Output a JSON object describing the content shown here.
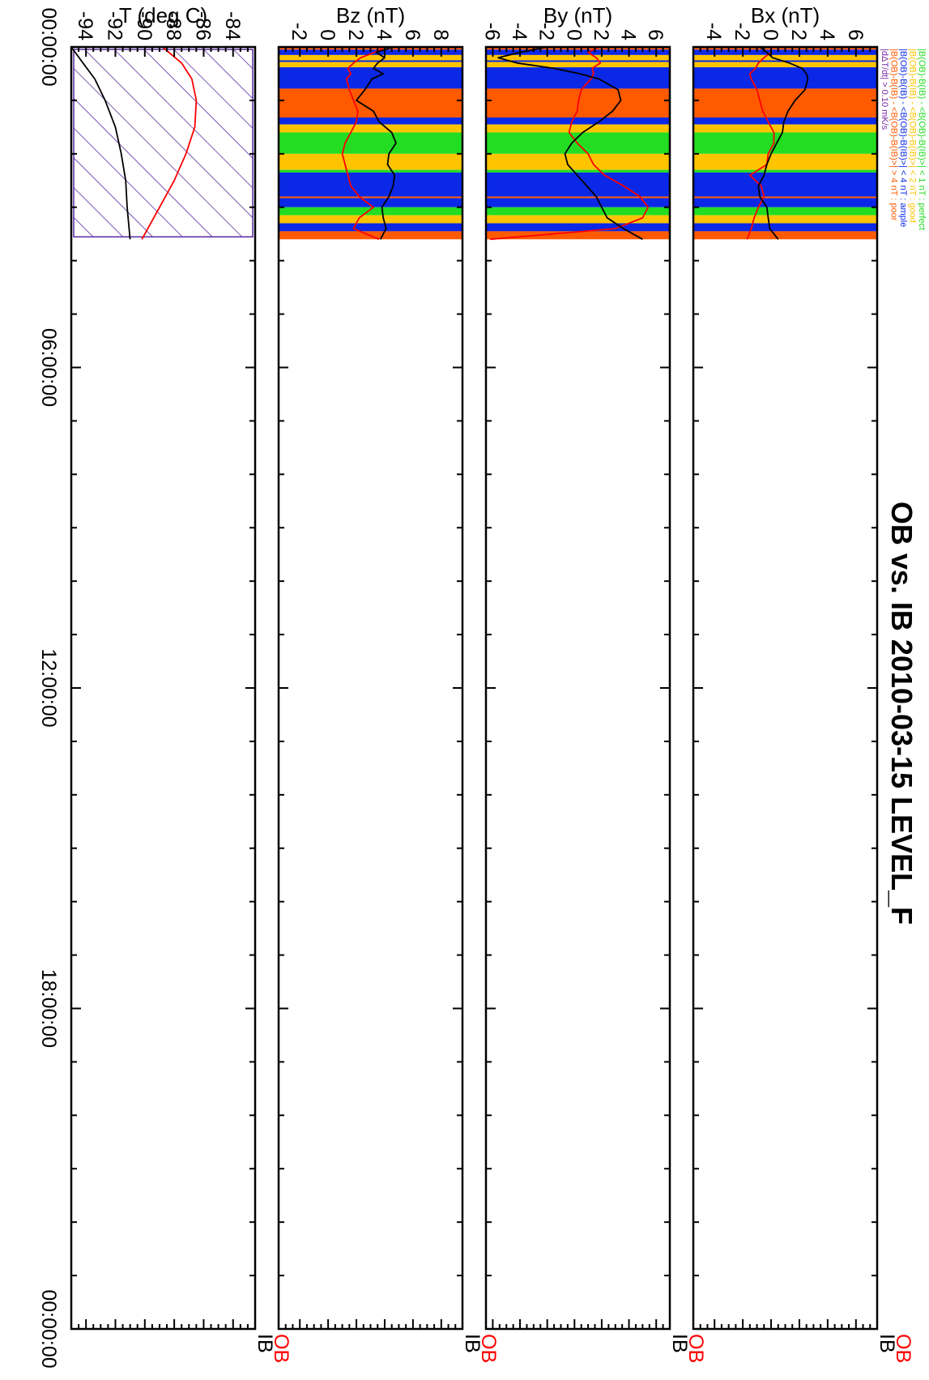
{
  "title": "OB vs. IB     2010-03-15 LEVEL_F",
  "legend": {
    "entries": [
      {
        "text": "|B(OB)-B(IB) - <B(OB)-B(IB)>| < 1 nT  : perfect",
        "color": "#22dd22"
      },
      {
        "text": "|B(OB)-B(IB) - <B(OB)-B(IB)>| < 2 nT  : good",
        "color": "#ffc400"
      },
      {
        "text": "|B(OB)-B(IB) - <B(OB)-B(IB)>| < 4 nT  : ample",
        "color": "#0a28e6"
      },
      {
        "text": "|B(OB)-B(IB) - <B(OB)-B(IB)>| > 4 nT  : poor",
        "color": "#ff5a00"
      },
      {
        "text": "|dΔT/dt|                              > 0.10 mK/s",
        "color": "#7a2aa8"
      }
    ]
  },
  "series_labels": {
    "ob": "OB",
    "ib": "IB"
  },
  "colors": {
    "ob": "#ff0000",
    "ib": "#000000",
    "perfect": "#22dd22",
    "good": "#ffc400",
    "ample": "#0a28e6",
    "poor": "#ff5a00",
    "hatch": "#5a2aa0"
  },
  "time_ticks": [
    "00:00:00",
    "06:00:00",
    "12:00:00",
    "18:00:00",
    "00:00:00"
  ],
  "chart_data": [
    {
      "type": "line",
      "ylabel": "Bx (nT)",
      "ylim": [
        -5.5,
        7.5
      ],
      "yticks": [
        6,
        4,
        2,
        0,
        -2,
        -4
      ],
      "ytick_labels": [
        "6",
        "4",
        "2",
        "0",
        "-2",
        "-4"
      ],
      "xlim_hours": [
        0,
        24
      ],
      "data_end_hours": 3.6,
      "quality_bands": [
        {
          "start": 0.0,
          "end": 0.05,
          "q": "poor"
        },
        {
          "start": 0.05,
          "end": 0.15,
          "q": "ample"
        },
        {
          "start": 0.15,
          "end": 0.25,
          "q": "good"
        },
        {
          "start": 0.25,
          "end": 0.28,
          "q": "ample"
        },
        {
          "start": 0.28,
          "end": 0.38,
          "q": "good"
        },
        {
          "start": 0.38,
          "end": 0.78,
          "q": "ample"
        },
        {
          "start": 0.78,
          "end": 1.32,
          "q": "poor"
        },
        {
          "start": 1.32,
          "end": 1.45,
          "q": "ample"
        },
        {
          "start": 1.45,
          "end": 1.6,
          "q": "good"
        },
        {
          "start": 1.6,
          "end": 2.0,
          "q": "perfect"
        },
        {
          "start": 2.0,
          "end": 2.3,
          "q": "good"
        },
        {
          "start": 2.3,
          "end": 2.35,
          "q": "perfect"
        },
        {
          "start": 2.35,
          "end": 2.8,
          "q": "ample"
        },
        {
          "start": 2.8,
          "end": 2.83,
          "q": "poor"
        },
        {
          "start": 2.83,
          "end": 3.0,
          "q": "ample"
        },
        {
          "start": 3.0,
          "end": 3.15,
          "q": "perfect"
        },
        {
          "start": 3.15,
          "end": 3.3,
          "q": "good"
        },
        {
          "start": 3.3,
          "end": 3.45,
          "q": "ample"
        },
        {
          "start": 3.45,
          "end": 3.6,
          "q": "poor"
        }
      ],
      "series": [
        {
          "name": "OB",
          "x": [
            0.0,
            0.1,
            0.2,
            0.3,
            0.4,
            0.5,
            0.6,
            0.8,
            1.0,
            1.2,
            1.4,
            1.6,
            1.8,
            2.0,
            2.2,
            2.4,
            2.6,
            2.8,
            3.0,
            3.2,
            3.4,
            3.6
          ],
          "y": [
            0.0,
            0.0,
            -0.5,
            -0.9,
            -1.1,
            -1.5,
            -1.4,
            -1.0,
            -0.8,
            -0.6,
            -0.2,
            0.2,
            0.2,
            -0.2,
            -0.3,
            -1.5,
            -0.7,
            -0.5,
            -0.9,
            -1.2,
            -1.4,
            -1.7
          ]
        },
        {
          "name": "IB",
          "x": [
            0.0,
            0.1,
            0.2,
            0.3,
            0.4,
            0.5,
            0.6,
            0.8,
            1.0,
            1.2,
            1.4,
            1.6,
            1.8,
            2.0,
            2.2,
            2.4,
            2.6,
            2.8,
            3.0,
            3.2,
            3.4,
            3.6
          ],
          "y": [
            -0.8,
            -0.3,
            0.1,
            1.3,
            2.2,
            2.5,
            2.6,
            2.4,
            1.7,
            1.2,
            0.9,
            0.8,
            0.4,
            0.0,
            -0.3,
            -0.5,
            -0.9,
            -0.8,
            -0.3,
            -0.2,
            -0.1,
            0.5
          ]
        }
      ]
    },
    {
      "type": "line",
      "ylabel": "By (nT)",
      "ylim": [
        -6.5,
        7.0
      ],
      "yticks": [
        6,
        4,
        2,
        0,
        -2,
        -4,
        -6
      ],
      "ytick_labels": [
        "6",
        "4",
        "2",
        "0",
        "-2",
        "-4",
        "-6"
      ],
      "xlim_hours": [
        0,
        24
      ],
      "data_end_hours": 3.6,
      "quality_bands": [
        {
          "start": 0.0,
          "end": 0.05,
          "q": "poor"
        },
        {
          "start": 0.05,
          "end": 0.15,
          "q": "ample"
        },
        {
          "start": 0.15,
          "end": 0.25,
          "q": "good"
        },
        {
          "start": 0.25,
          "end": 0.28,
          "q": "ample"
        },
        {
          "start": 0.28,
          "end": 0.38,
          "q": "good"
        },
        {
          "start": 0.38,
          "end": 0.78,
          "q": "ample"
        },
        {
          "start": 0.78,
          "end": 1.32,
          "q": "poor"
        },
        {
          "start": 1.32,
          "end": 1.45,
          "q": "ample"
        },
        {
          "start": 1.45,
          "end": 1.6,
          "q": "good"
        },
        {
          "start": 1.6,
          "end": 2.0,
          "q": "perfect"
        },
        {
          "start": 2.0,
          "end": 2.3,
          "q": "good"
        },
        {
          "start": 2.3,
          "end": 2.35,
          "q": "perfect"
        },
        {
          "start": 2.35,
          "end": 2.8,
          "q": "ample"
        },
        {
          "start": 2.8,
          "end": 2.83,
          "q": "poor"
        },
        {
          "start": 2.83,
          "end": 3.0,
          "q": "ample"
        },
        {
          "start": 3.0,
          "end": 3.15,
          "q": "perfect"
        },
        {
          "start": 3.15,
          "end": 3.3,
          "q": "good"
        },
        {
          "start": 3.3,
          "end": 3.45,
          "q": "ample"
        },
        {
          "start": 3.45,
          "end": 3.6,
          "q": "poor"
        }
      ],
      "series": [
        {
          "name": "OB",
          "x": [
            0.0,
            0.1,
            0.2,
            0.3,
            0.4,
            0.5,
            0.6,
            0.8,
            1.0,
            1.2,
            1.4,
            1.6,
            1.8,
            2.0,
            2.2,
            2.4,
            2.6,
            2.8,
            3.0,
            3.2,
            3.4,
            3.6
          ],
          "y": [
            1.8,
            1.0,
            1.6,
            1.9,
            1.3,
            1.4,
            1.2,
            0.5,
            0.3,
            0.2,
            -0.2,
            -0.4,
            0.2,
            1.0,
            1.4,
            2.2,
            3.6,
            4.8,
            5.4,
            5.0,
            3.0,
            -6.2
          ]
        },
        {
          "name": "IB",
          "x": [
            0.0,
            0.1,
            0.2,
            0.3,
            0.4,
            0.5,
            0.6,
            0.8,
            1.0,
            1.2,
            1.4,
            1.6,
            1.8,
            2.0,
            2.2,
            2.4,
            2.6,
            2.8,
            3.0,
            3.2,
            3.4,
            3.6
          ],
          "y": [
            -2.0,
            -4.0,
            -5.6,
            -4.2,
            -1.5,
            0.4,
            1.8,
            3.2,
            3.4,
            2.8,
            1.8,
            0.6,
            -0.2,
            -0.7,
            -0.5,
            0.2,
            0.9,
            1.6,
            2.0,
            2.4,
            3.6,
            5.0
          ]
        }
      ]
    },
    {
      "type": "line",
      "ylabel": "Bz (nT)",
      "ylim": [
        -3.5,
        9.5
      ],
      "yticks": [
        8,
        6,
        4,
        2,
        0,
        -2
      ],
      "ytick_labels": [
        "8",
        "6",
        "4",
        "2",
        "0",
        "-2"
      ],
      "xlim_hours": [
        0,
        24
      ],
      "data_end_hours": 3.6,
      "quality_bands": [
        {
          "start": 0.0,
          "end": 0.05,
          "q": "poor"
        },
        {
          "start": 0.05,
          "end": 0.15,
          "q": "ample"
        },
        {
          "start": 0.15,
          "end": 0.25,
          "q": "good"
        },
        {
          "start": 0.25,
          "end": 0.28,
          "q": "ample"
        },
        {
          "start": 0.28,
          "end": 0.38,
          "q": "good"
        },
        {
          "start": 0.38,
          "end": 0.78,
          "q": "ample"
        },
        {
          "start": 0.78,
          "end": 1.32,
          "q": "poor"
        },
        {
          "start": 1.32,
          "end": 1.45,
          "q": "ample"
        },
        {
          "start": 1.45,
          "end": 1.6,
          "q": "good"
        },
        {
          "start": 1.6,
          "end": 2.0,
          "q": "perfect"
        },
        {
          "start": 2.0,
          "end": 2.3,
          "q": "good"
        },
        {
          "start": 2.3,
          "end": 2.35,
          "q": "perfect"
        },
        {
          "start": 2.35,
          "end": 2.8,
          "q": "ample"
        },
        {
          "start": 2.8,
          "end": 2.83,
          "q": "poor"
        },
        {
          "start": 2.83,
          "end": 3.0,
          "q": "ample"
        },
        {
          "start": 3.0,
          "end": 3.15,
          "q": "perfect"
        },
        {
          "start": 3.15,
          "end": 3.3,
          "q": "good"
        },
        {
          "start": 3.3,
          "end": 3.45,
          "q": "ample"
        },
        {
          "start": 3.45,
          "end": 3.6,
          "q": "poor"
        }
      ],
      "series": [
        {
          "name": "OB",
          "x": [
            0.0,
            0.1,
            0.2,
            0.3,
            0.4,
            0.5,
            0.6,
            0.8,
            1.0,
            1.2,
            1.4,
            1.6,
            1.8,
            2.0,
            2.2,
            2.4,
            2.6,
            2.8,
            3.0,
            3.2,
            3.4,
            3.6
          ],
          "y": [
            4.0,
            3.3,
            2.3,
            1.8,
            1.4,
            1.6,
            1.3,
            1.5,
            1.8,
            2.1,
            2.0,
            1.6,
            1.2,
            1.0,
            1.2,
            1.4,
            1.6,
            2.2,
            3.2,
            2.2,
            1.8,
            3.6
          ]
        },
        {
          "name": "IB",
          "x": [
            0.0,
            0.1,
            0.2,
            0.3,
            0.4,
            0.5,
            0.6,
            0.8,
            1.0,
            1.2,
            1.4,
            1.6,
            1.8,
            2.0,
            2.2,
            2.4,
            2.6,
            2.8,
            3.0,
            3.2,
            3.4,
            3.6
          ],
          "y": [
            4.6,
            3.4,
            4.0,
            3.5,
            3.2,
            3.9,
            3.1,
            2.6,
            2.0,
            3.2,
            3.6,
            4.5,
            4.8,
            4.3,
            4.2,
            4.7,
            4.6,
            4.3,
            3.8,
            3.9,
            4.1,
            3.7
          ]
        }
      ]
    },
    {
      "type": "line",
      "ylabel": "T (deg C)",
      "ylim": [
        -95,
        -82.5
      ],
      "yticks": [
        -84,
        -86,
        -88,
        -90,
        -92,
        -94
      ],
      "ytick_labels": [
        "-84",
        "-86",
        "-88",
        "-90",
        "-92",
        "-94"
      ],
      "xlim_hours": [
        0,
        24
      ],
      "data_end_hours": 3.6,
      "hatched_interval_hours": [
        0,
        3.6
      ],
      "series": [
        {
          "name": "OB",
          "x": [
            0.0,
            0.3,
            0.6,
            1.0,
            1.5,
            2.0,
            2.5,
            3.0,
            3.6
          ],
          "y": [
            -88.8,
            -87.5,
            -86.8,
            -86.5,
            -86.6,
            -87.2,
            -88.0,
            -89.0,
            -90.2
          ]
        },
        {
          "name": "IB",
          "x": [
            0.0,
            0.3,
            0.6,
            1.0,
            1.5,
            2.0,
            2.5,
            3.0,
            3.6
          ],
          "y": [
            -95.0,
            -94.2,
            -93.4,
            -92.7,
            -92.0,
            -91.6,
            -91.3,
            -91.2,
            -91.0
          ]
        }
      ]
    }
  ]
}
